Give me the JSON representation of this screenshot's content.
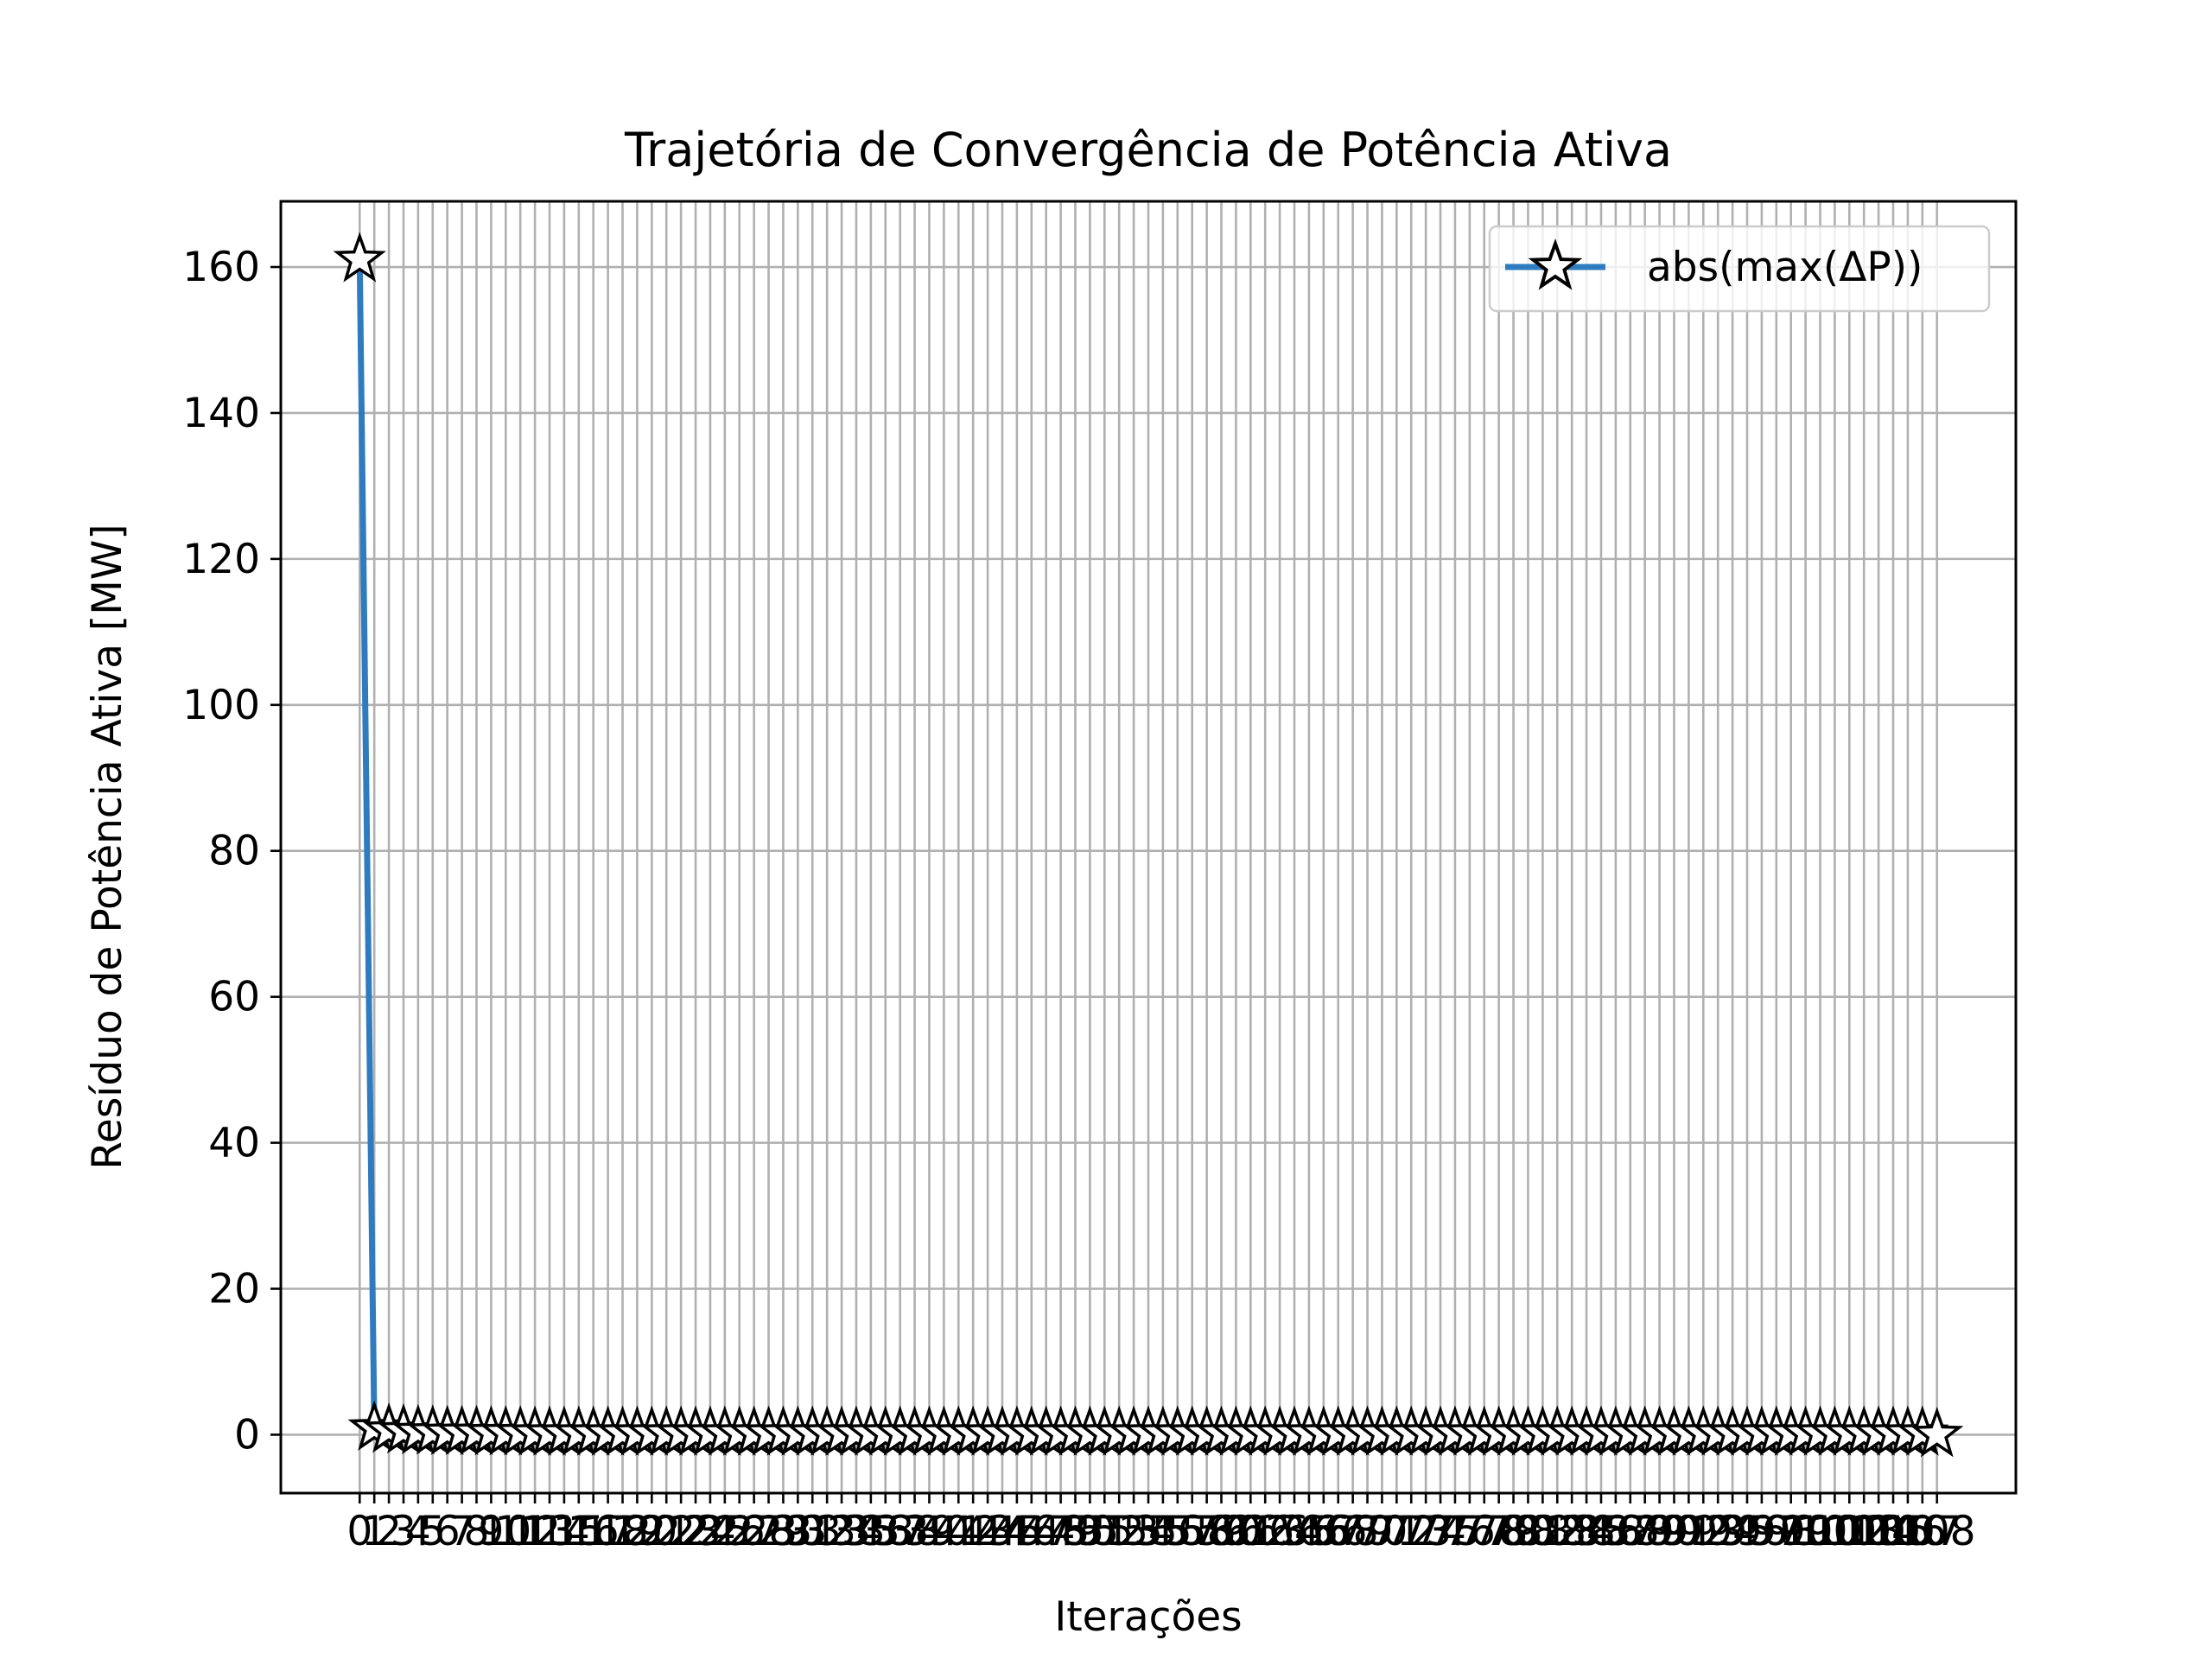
{
  "chart_data": {
    "type": "line",
    "title": "Trajetória de Convergência de Potência Ativa",
    "xlabel": "Iterações",
    "ylabel": "Resíduo de Potência Ativa [MW]",
    "xlim": [
      -5.4,
      113.4
    ],
    "ylim": [
      -8,
      169
    ],
    "yticks": [
      0,
      20,
      40,
      60,
      80,
      100,
      120,
      140,
      160
    ],
    "xticks_note": "every integer from 0 to 108",
    "grid": true,
    "legend_position": "upper right",
    "series": [
      {
        "name": "abs(max(ΔP))",
        "color": "#2e7bbf",
        "marker": "star",
        "x": [
          0,
          1,
          2,
          3,
          4,
          5,
          6,
          7,
          8,
          9,
          10,
          11,
          12,
          13,
          14,
          15,
          16,
          17,
          18,
          19,
          20,
          21,
          22,
          23,
          24,
          25,
          26,
          27,
          28,
          29,
          30,
          31,
          32,
          33,
          34,
          35,
          36,
          37,
          38,
          39,
          40,
          41,
          42,
          43,
          44,
          45,
          46,
          47,
          48,
          49,
          50,
          51,
          52,
          53,
          54,
          55,
          56,
          57,
          58,
          59,
          60,
          61,
          62,
          63,
          64,
          65,
          66,
          67,
          68,
          69,
          70,
          71,
          72,
          73,
          74,
          75,
          76,
          77,
          78,
          79,
          80,
          81,
          82,
          83,
          84,
          85,
          86,
          87,
          88,
          89,
          90,
          91,
          92,
          93,
          94,
          95,
          96,
          97,
          98,
          99,
          100,
          101,
          102,
          103,
          104,
          105,
          106,
          107,
          108
        ],
        "y": [
          161,
          0.9,
          0.6,
          0.5,
          0.4,
          0.35,
          0.3,
          0.3,
          0.3,
          0.25,
          0.25,
          0.25,
          0.2,
          0.2,
          0.2,
          0.2,
          0.2,
          0.2,
          0.2,
          0.2,
          0.2,
          0.2,
          0.2,
          0.2,
          0.2,
          0.2,
          0.2,
          0.2,
          0.2,
          0.2,
          0.2,
          0.2,
          0.2,
          0.2,
          0.2,
          0.2,
          0.2,
          0.2,
          0.2,
          0.2,
          0.2,
          0.2,
          0.2,
          0.2,
          0.2,
          0.2,
          0.2,
          0.2,
          0.2,
          0.2,
          0.2,
          0.2,
          0.2,
          0.2,
          0.2,
          0.2,
          0.2,
          0.2,
          0.2,
          0.2,
          0.2,
          0.2,
          0.2,
          0.2,
          0.2,
          0.2,
          0.2,
          0.2,
          0.2,
          0.2,
          0.2,
          0.2,
          0.2,
          0.2,
          0.2,
          0.2,
          0.2,
          0.2,
          0.2,
          0.2,
          0.2,
          0.2,
          0.2,
          0.2,
          0.2,
          0.2,
          0.2,
          0.2,
          0.2,
          0.2,
          0.2,
          0.2,
          0.2,
          0.2,
          0.2,
          0.2,
          0.2,
          0.2,
          0.2,
          0.2,
          0.2,
          0.2,
          0.2,
          0.2,
          0.2,
          0.2,
          0.2,
          0.2,
          0.01
        ]
      }
    ]
  }
}
